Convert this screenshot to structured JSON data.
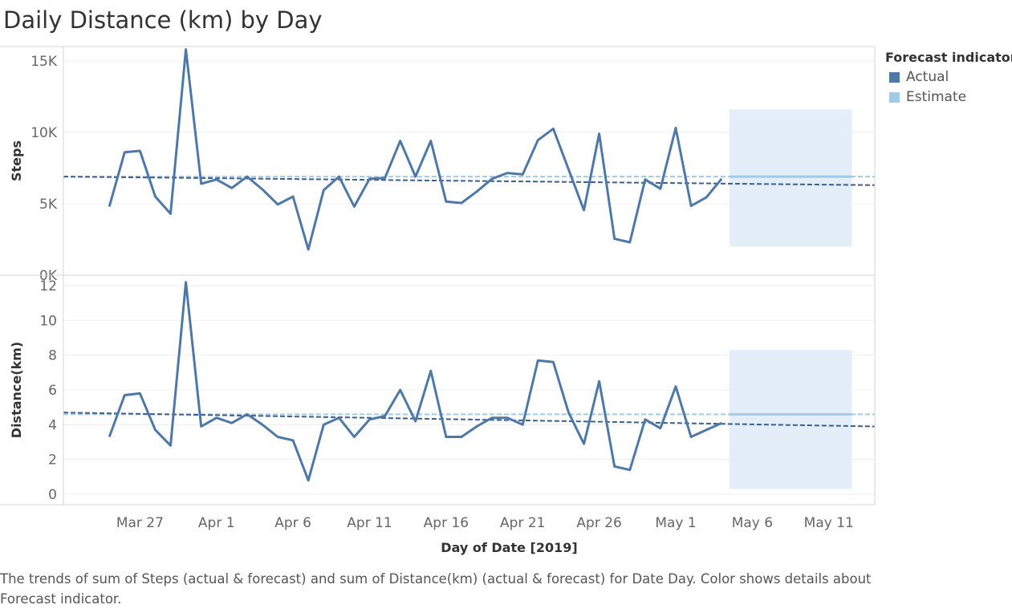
{
  "title": "Daily Distance (km) by Day",
  "legend": {
    "title": "Forecast indicator",
    "items": [
      {
        "label": "Actual",
        "color": "#4e79a7"
      },
      {
        "label": "Estimate",
        "color": "#a0cbe8"
      }
    ]
  },
  "caption": "The trends of sum of Steps (actual & forecast)  and sum of Distance(km) (actual & forecast)  for Date Day.  Color shows details about Forecast indicator.",
  "chart_data": {
    "type": "line",
    "xlabel": "Day of Date [2019]",
    "x_ticks": [
      "Mar 27",
      "Apr 1",
      "Apr 6",
      "Apr 11",
      "Apr 16",
      "Apr 21",
      "Apr 26",
      "May 1",
      "May 6",
      "May 11"
    ],
    "x_tick_dates": [
      "2019-03-27",
      "2019-04-01",
      "2019-04-06",
      "2019-04-11",
      "2019-04-16",
      "2019-04-21",
      "2019-04-26",
      "2019-05-01",
      "2019-05-06",
      "2019-05-11"
    ],
    "x_range": [
      "2019-03-22",
      "2019-05-14"
    ],
    "actual_dates": [
      "2019-03-25",
      "2019-03-26",
      "2019-03-27",
      "2019-03-28",
      "2019-03-29",
      "2019-03-30",
      "2019-03-31",
      "2019-04-01",
      "2019-04-02",
      "2019-04-03",
      "2019-04-04",
      "2019-04-05",
      "2019-04-06",
      "2019-04-07",
      "2019-04-08",
      "2019-04-09",
      "2019-04-10",
      "2019-04-11",
      "2019-04-12",
      "2019-04-13",
      "2019-04-14",
      "2019-04-15",
      "2019-04-16",
      "2019-04-17",
      "2019-04-18",
      "2019-04-19",
      "2019-04-20",
      "2019-04-21",
      "2019-04-22",
      "2019-04-23",
      "2019-04-24",
      "2019-04-25",
      "2019-04-26",
      "2019-04-27",
      "2019-04-28",
      "2019-04-29",
      "2019-04-30",
      "2019-05-01",
      "2019-05-02",
      "2019-05-03",
      "2019-05-04"
    ],
    "forecast_range": [
      "2019-05-05",
      "2019-05-12"
    ],
    "panels": [
      {
        "ylabel": "Steps",
        "ylim": [
          0,
          16000
        ],
        "y_ticks": [
          0,
          5000,
          10000,
          15000
        ],
        "y_tick_labels": [
          "0K",
          "5K",
          "10K",
          "15K"
        ],
        "series": [
          {
            "name": "Actual",
            "values": [
              4800,
              8600,
              8700,
              5500,
              4300,
              15800,
              6400,
              6700,
              6100,
              6900,
              6000,
              4950,
              5500,
              1800,
              5950,
              6900,
              4800,
              6750,
              6800,
              9400,
              6900,
              9400,
              5150,
              5050,
              5850,
              6750,
              7150,
              7050,
              9450,
              10250,
              7400,
              4550,
              9900,
              2550,
              2300,
              6700,
              6050,
              10300,
              4850,
              5450,
              6750
            ]
          }
        ],
        "trend": [
          6900,
          6300
        ],
        "estimate": {
          "value": 6900,
          "low": 2000,
          "high": 11600
        },
        "grid": true
      },
      {
        "ylabel": "Distance(km)",
        "ylim": [
          -0.6,
          12.6
        ],
        "y_ticks": [
          0,
          2,
          4,
          6,
          8,
          10,
          12
        ],
        "y_tick_labels": [
          "0",
          "2",
          "4",
          "6",
          "8",
          "10",
          "12"
        ],
        "series": [
          {
            "name": "Actual",
            "values": [
              3.3,
              5.7,
              5.8,
              3.7,
              2.8,
              12.2,
              3.9,
              4.4,
              4.1,
              4.6,
              4.0,
              3.3,
              3.1,
              0.8,
              4.0,
              4.4,
              3.3,
              4.3,
              4.5,
              6.0,
              4.2,
              7.1,
              3.3,
              3.3,
              3.9,
              4.4,
              4.4,
              4.0,
              7.7,
              7.6,
              4.7,
              2.9,
              6.5,
              1.6,
              1.4,
              4.3,
              3.8,
              6.2,
              3.3,
              3.7,
              4.1
            ]
          }
        ],
        "trend": [
          4.7,
          3.9
        ],
        "estimate": {
          "value": 4.6,
          "low": 0.3,
          "high": 8.3
        },
        "grid": true
      }
    ],
    "grid": true,
    "legend_position": "top-right"
  }
}
